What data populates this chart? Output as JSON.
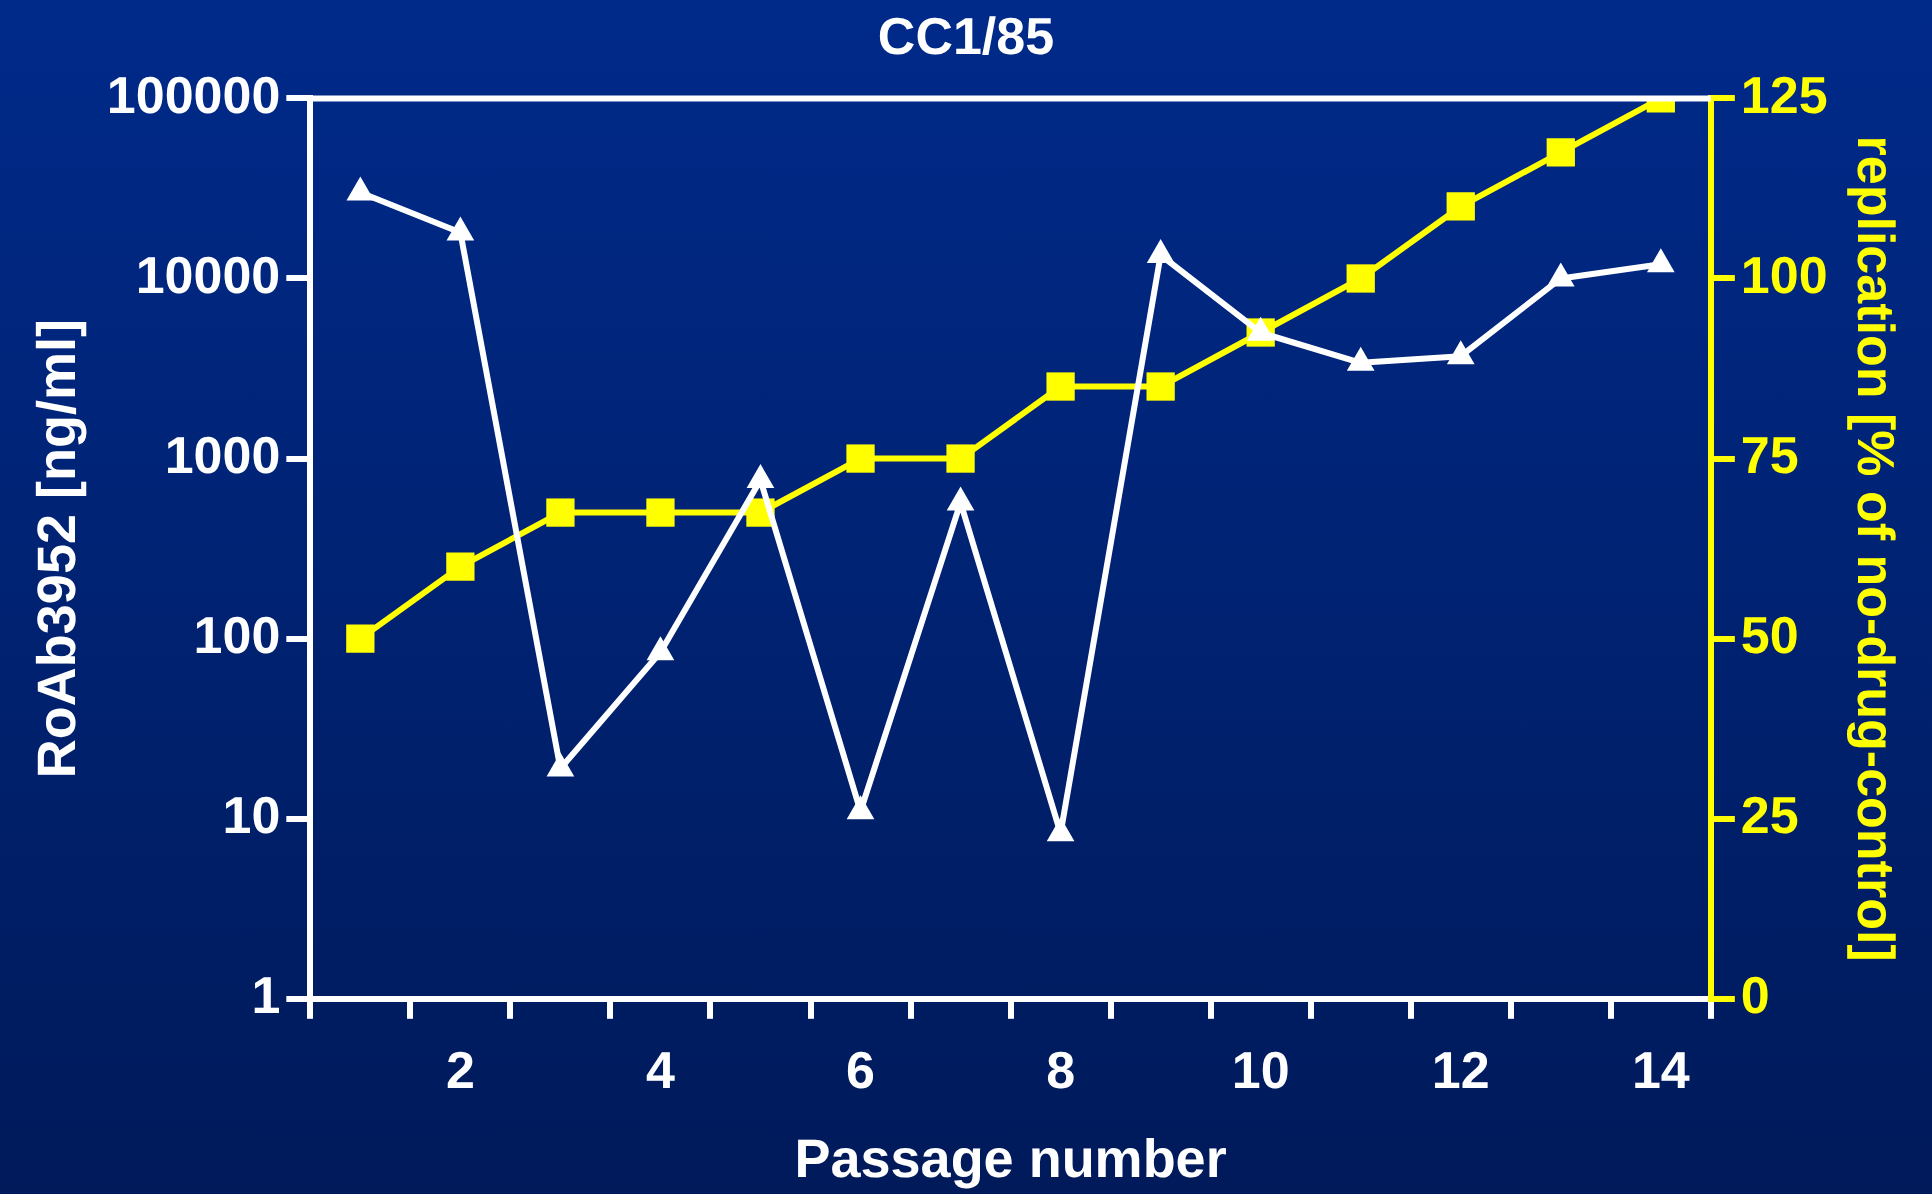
{
  "chart_data": {
    "type": "line",
    "title": "CC1/85",
    "xlabel": "Passage number",
    "ylabel": "RoAb3952 [ng/ml]",
    "y2label": "replication [% of no-drug-control]",
    "x": [
      1,
      2,
      3,
      4,
      5,
      6,
      7,
      8,
      9,
      10,
      11,
      12,
      13,
      14
    ],
    "xlim": [
      0.5,
      14.5
    ],
    "xticks": [
      {
        "value": 0.5,
        "label": null
      },
      {
        "value": 1.5,
        "label": null
      },
      2,
      {
        "value": 2.5,
        "label": null
      },
      {
        "value": 3.5,
        "label": null
      },
      4,
      {
        "value": 4.5,
        "label": null
      },
      {
        "value": 5.5,
        "label": null
      },
      6,
      {
        "value": 6.5,
        "label": null
      },
      {
        "value": 7.5,
        "label": null
      },
      8,
      {
        "value": 8.5,
        "label": null
      },
      {
        "value": 9.5,
        "label": null
      },
      10,
      {
        "value": 10.5,
        "label": null
      },
      {
        "value": 11.5,
        "label": null
      },
      12,
      {
        "value": 12.5,
        "label": null
      },
      {
        "value": 13.5,
        "label": null
      },
      14,
      {
        "value": 14.5,
        "label": null
      }
    ],
    "ylim": [
      1,
      100000
    ],
    "yticks": [
      1,
      10,
      100,
      1000,
      10000,
      100000
    ],
    "log": "y",
    "y2lim": [
      0,
      125
    ],
    "y2ticks": [
      0,
      25,
      50,
      75,
      100,
      125
    ],
    "legend": false,
    "grid": false,
    "series": [
      {
        "type": "line",
        "color": "#ffffff",
        "marker": "triangle",
        "values": [
          30000,
          18000,
          19,
          84,
          760,
          11,
          570,
          8.3,
          13500,
          5000,
          3400,
          3700,
          10000,
          12000
        ]
      },
      {
        "type": "line",
        "color": "#ffff00",
        "marker": "square",
        "axis": "y2",
        "values": [
          50,
          60,
          67.5,
          67.5,
          67.5,
          75,
          75,
          85,
          85,
          92.5,
          100,
          110,
          117.5,
          125
        ]
      }
    ]
  }
}
